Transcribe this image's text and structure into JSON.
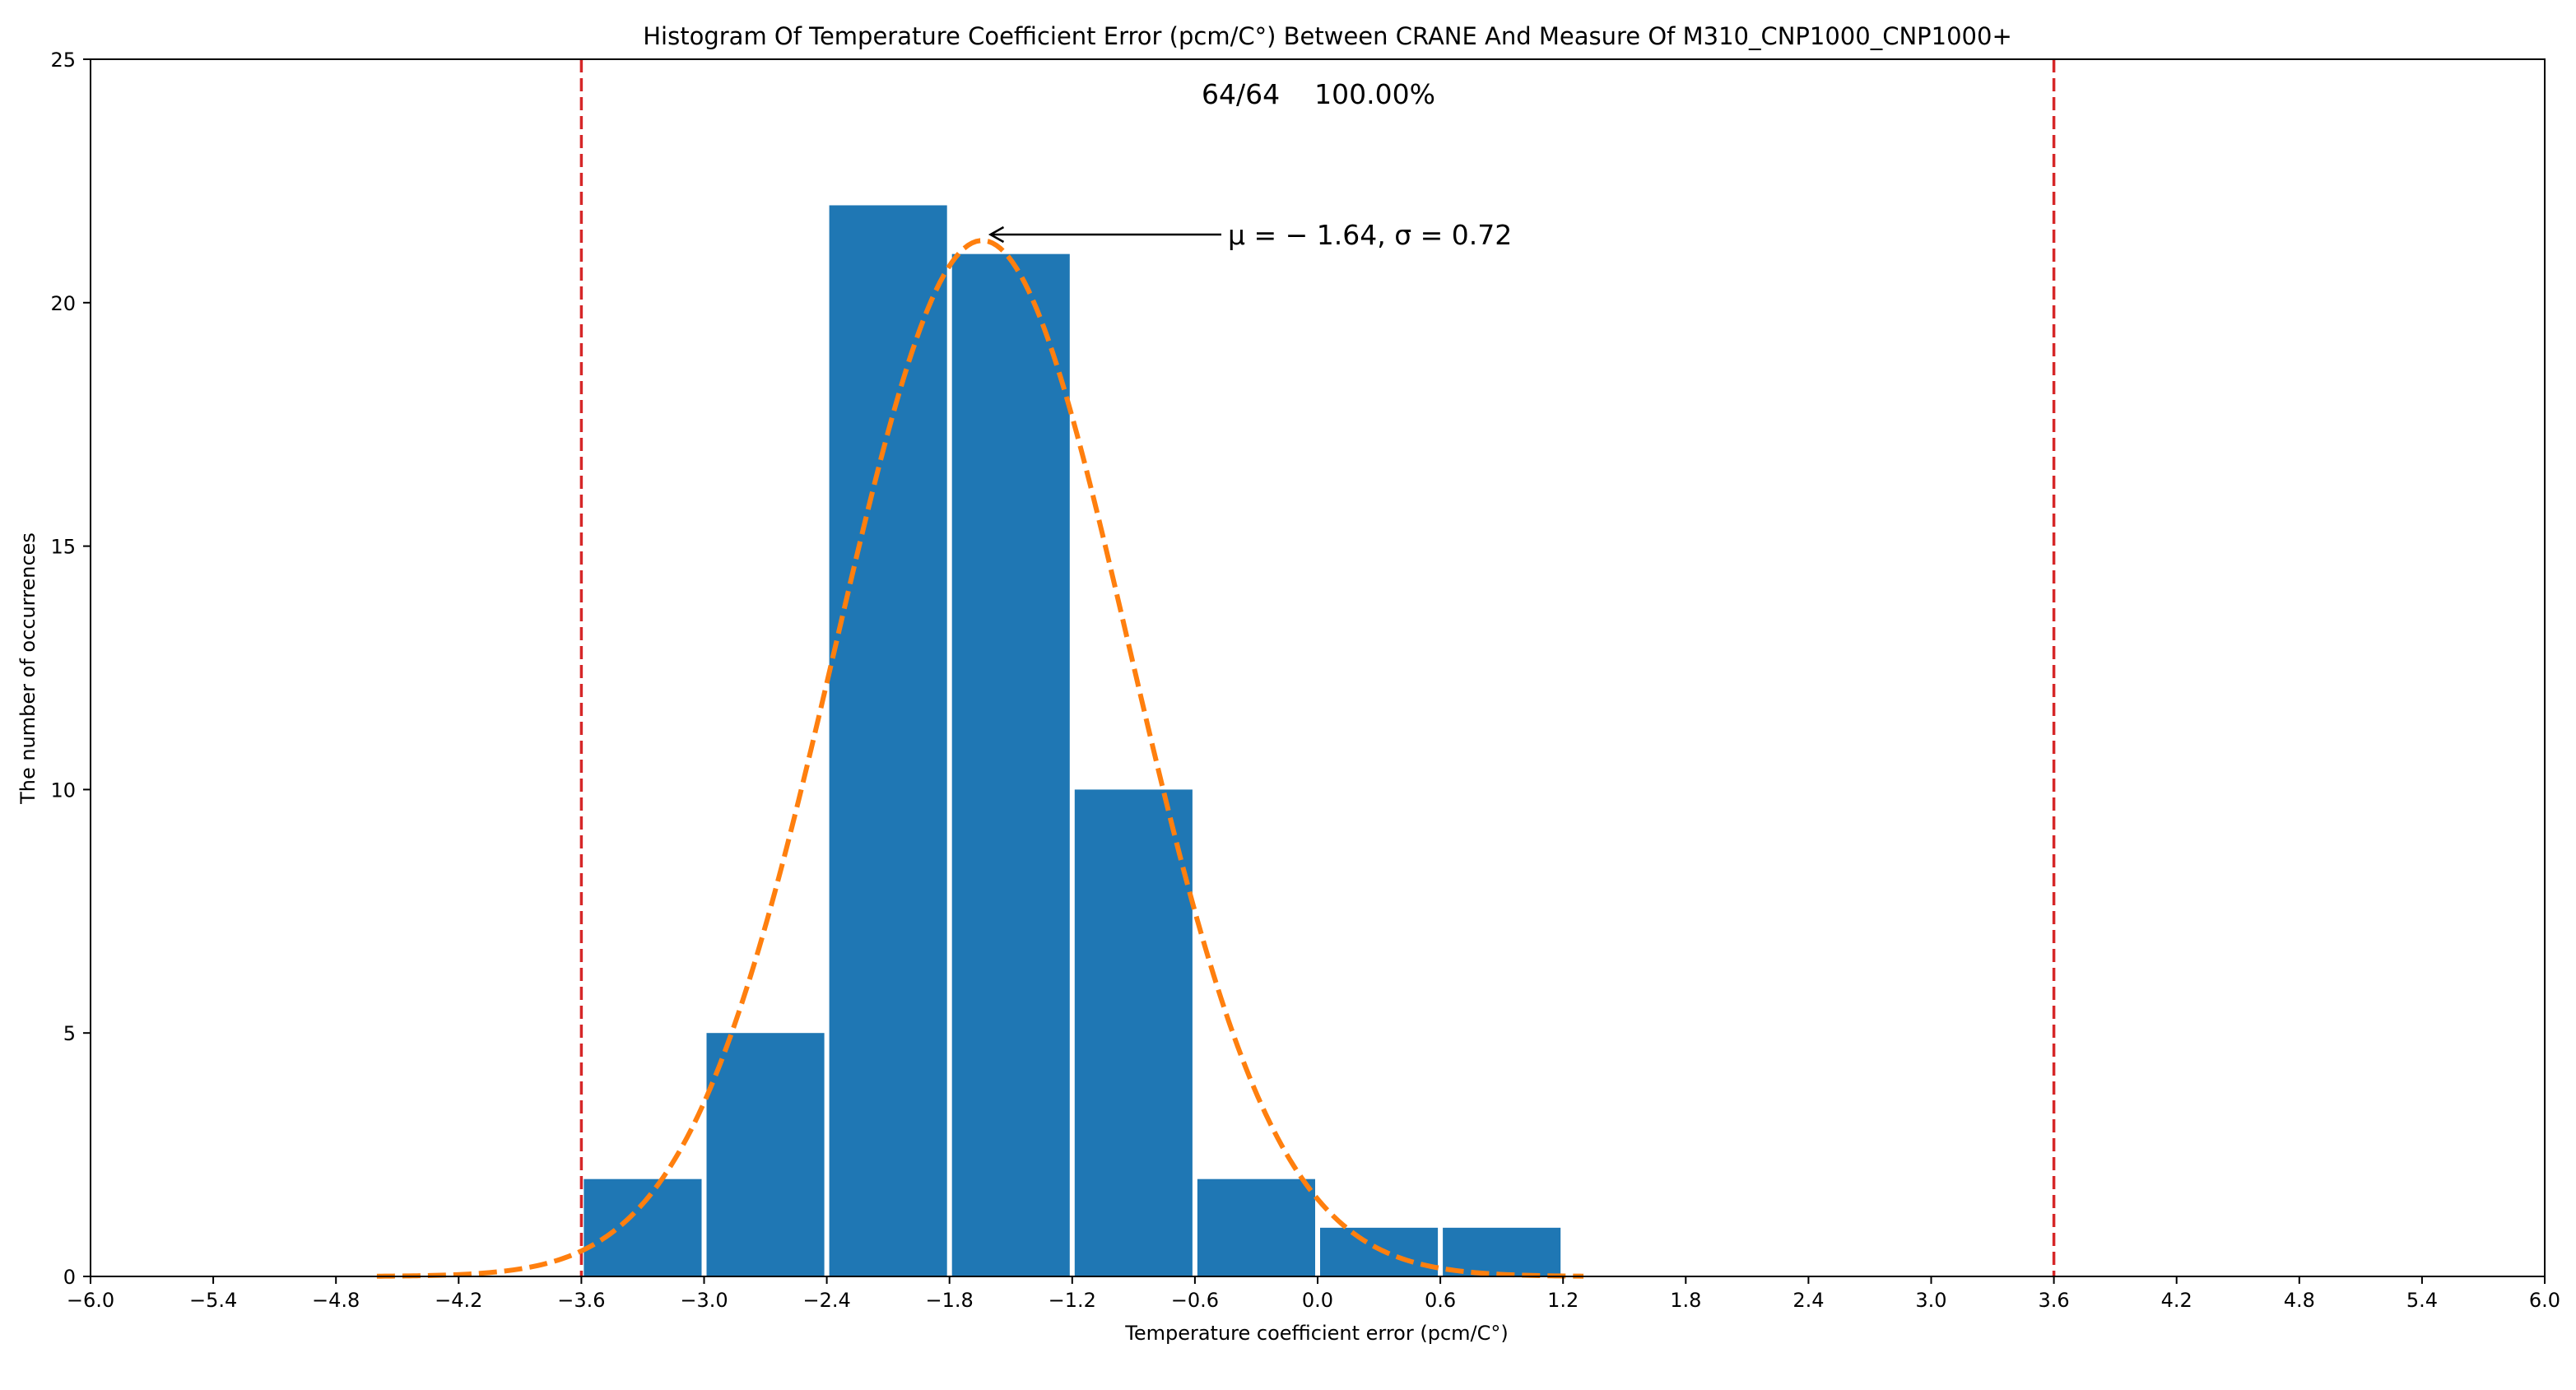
{
  "chart_data": {
    "type": "bar",
    "title": "Histogram Of Temperature Coefficient Error (pcm/C°) Between CRANE And Measure Of M310_CNP1000_CNP1000+",
    "xlabel": "Temperature coefficient error (pcm/C°)",
    "ylabel": "The number of occurrences",
    "xlim": [
      -6.0,
      6.0
    ],
    "ylim": [
      0,
      25
    ],
    "xticks": [
      "−6.0",
      "−5.4",
      "−4.8",
      "−4.2",
      "−3.6",
      "−3.0",
      "−2.4",
      "−1.8",
      "−1.2",
      "−0.6",
      "0.0",
      "0.6",
      "1.2",
      "1.8",
      "2.4",
      "3.0",
      "3.6",
      "4.2",
      "4.8",
      "5.4",
      "6.0"
    ],
    "yticks": [
      "0",
      "5",
      "10",
      "15",
      "20",
      "25"
    ],
    "bins": [
      {
        "x0": -3.6,
        "x1": -3.0,
        "count": 2
      },
      {
        "x0": -3.0,
        "x1": -2.4,
        "count": 5
      },
      {
        "x0": -2.4,
        "x1": -1.8,
        "count": 22
      },
      {
        "x0": -1.8,
        "x1": -1.2,
        "count": 21
      },
      {
        "x0": -1.2,
        "x1": -0.6,
        "count": 10
      },
      {
        "x0": -0.6,
        "x1": 0.0,
        "count": 2
      },
      {
        "x0": 0.0,
        "x1": 0.6,
        "count": 1
      },
      {
        "x0": 0.6,
        "x1": 1.2,
        "count": 1
      }
    ],
    "fit": {
      "mu": -1.64,
      "sigma": 0.72,
      "n": 64,
      "bin_width": 0.6,
      "x_range": [
        -4.6,
        1.3
      ],
      "style": "dashed",
      "color": "#ff7f0e"
    },
    "limits": [
      -3.6,
      3.6
    ],
    "limit_color": "#d62728",
    "bar_color": "#1f77b4",
    "stat_text": "64/64    100.00%",
    "annotation": {
      "prefix": "μ = − 1.64, ",
      "sigma_part": "σ = 0.72",
      "points_to": {
        "x": -1.64,
        "y": 21.4
      }
    }
  }
}
